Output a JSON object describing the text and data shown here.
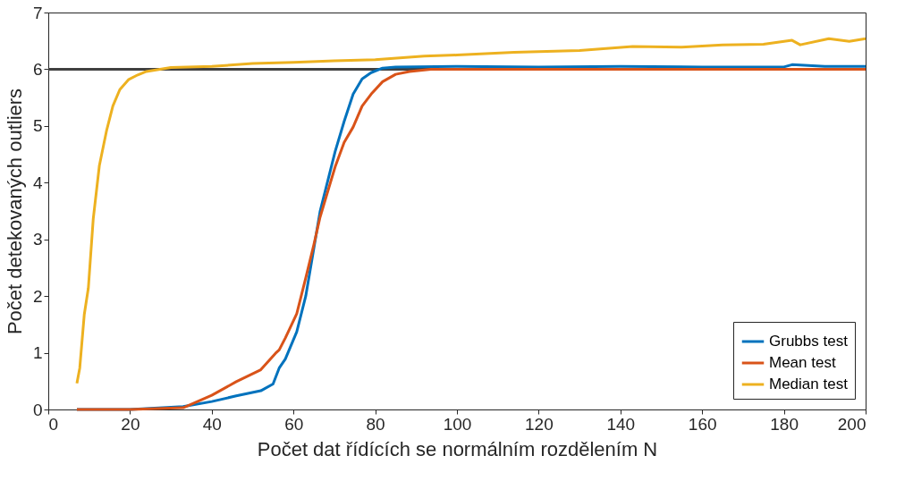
{
  "chart_data": {
    "type": "line",
    "xlabel": "Počet dat řídících se normálním rozdělením N",
    "ylabel": "Počet detekovaných outliers",
    "xlim": [
      0,
      200
    ],
    "xticks": [
      0,
      20,
      40,
      60,
      80,
      100,
      120,
      140,
      160,
      180,
      200
    ],
    "ylim": [
      0,
      7
    ],
    "yticks": [
      0,
      1,
      2,
      3,
      4,
      5,
      6,
      7
    ],
    "grid": false,
    "legend": "bottom right",
    "marker": "none",
    "line_style": "solid",
    "ref_lines": [
      {
        "axis": "y",
        "value": 6,
        "color": "#404040"
      }
    ],
    "series": [
      {
        "name": "Grubbs test",
        "color": "#0072bd",
        "x": [
          7,
          20,
          33,
          40,
          46,
          52,
          55,
          56.5,
          58,
          60.8,
          63,
          65,
          66.5,
          68.7,
          70.2,
          72.4,
          74.6,
          76.8,
          79,
          81.8,
          85,
          100,
          120,
          140,
          160,
          180,
          182,
          190,
          200
        ],
        "values": [
          0,
          0,
          0.05,
          0.14,
          0.24,
          0.33,
          0.45,
          0.73,
          0.89,
          1.37,
          2.0,
          2.85,
          3.49,
          4.12,
          4.55,
          5.08,
          5.56,
          5.83,
          5.94,
          6.02,
          6.04,
          6.05,
          6.04,
          6.05,
          6.04,
          6.04,
          6.08,
          6.05,
          6.05
        ]
      },
      {
        "name": "Mean test",
        "color": "#d95319",
        "x": [
          7,
          20,
          33,
          40,
          46,
          52,
          55.6,
          56.5,
          58,
          60.8,
          63,
          65,
          66.5,
          68.7,
          70.2,
          72.4,
          74.6,
          76.8,
          79,
          81.8,
          85,
          88.4,
          93.6,
          120,
          160,
          200
        ],
        "values": [
          0,
          0,
          0.03,
          0.25,
          0.49,
          0.7,
          0.99,
          1.05,
          1.26,
          1.69,
          2.32,
          2.91,
          3.39,
          3.92,
          4.28,
          4.71,
          4.98,
          5.35,
          5.56,
          5.78,
          5.91,
          5.96,
          6.0,
          6.0,
          6.0,
          6.0
        ]
      },
      {
        "name": "Median test",
        "color": "#edb120",
        "x": [
          7,
          7.7,
          8.8,
          9.8,
          11,
          12.5,
          14.3,
          15.8,
          17.5,
          19.7,
          21.9,
          24,
          30,
          40,
          50,
          60,
          70,
          80,
          92,
          100,
          114,
          130,
          143,
          155,
          165,
          175,
          182,
          184,
          191,
          196,
          200
        ],
        "values": [
          0.46,
          0.73,
          1.67,
          2.14,
          3.36,
          4.3,
          4.93,
          5.35,
          5.64,
          5.82,
          5.9,
          5.96,
          6.03,
          6.05,
          6.1,
          6.12,
          6.15,
          6.17,
          6.23,
          6.25,
          6.3,
          6.33,
          6.4,
          6.39,
          6.43,
          6.44,
          6.51,
          6.43,
          6.54,
          6.49,
          6.54
        ]
      }
    ]
  }
}
